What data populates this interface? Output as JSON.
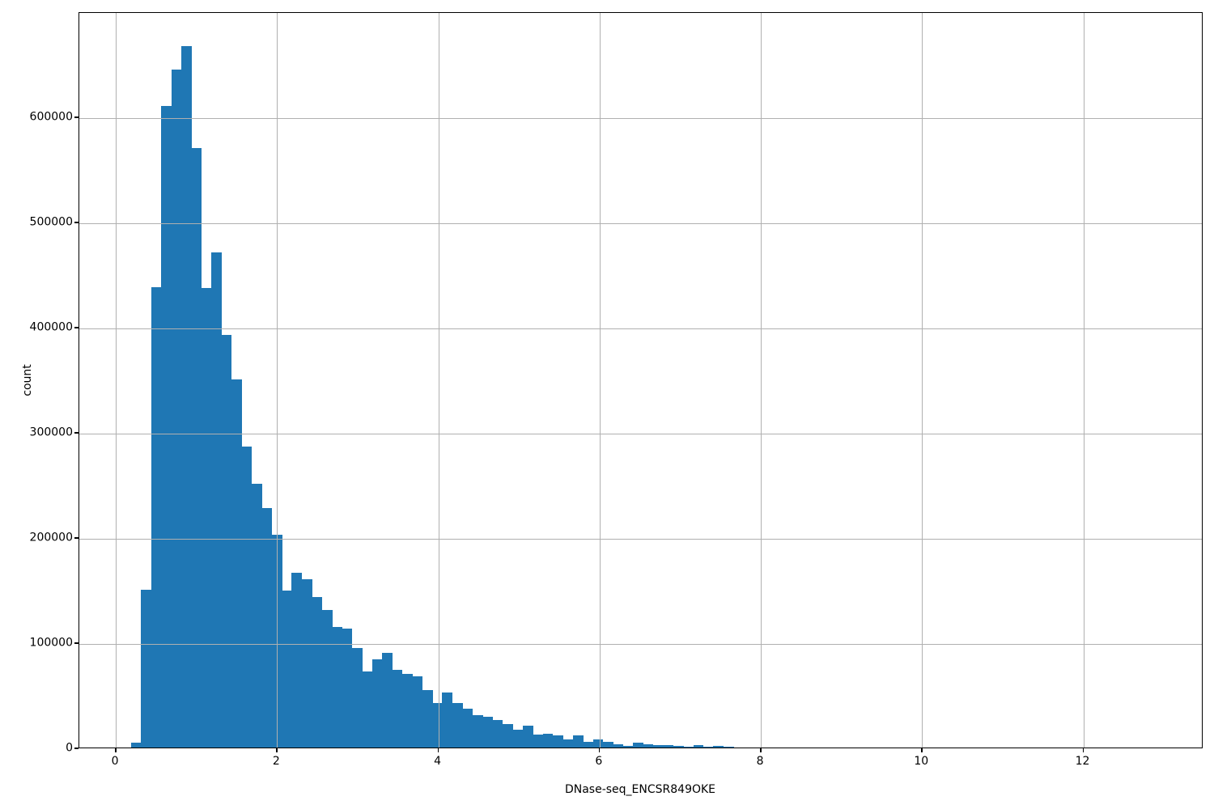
{
  "chart_data": {
    "type": "bar",
    "subtype": "histogram",
    "title": "",
    "xlabel": "DNase-seq_ENCSR849OKE",
    "ylabel": "count",
    "bar_color": "#1f77b4",
    "grid_color": "#b0b0b0",
    "grid": true,
    "legend": false,
    "xlim": [
      -0.452,
      13.49
    ],
    "ylim": [
      0,
      700000
    ],
    "xticks": [
      0,
      2,
      4,
      6,
      8,
      10,
      12
    ],
    "yticks": [
      0,
      100000,
      200000,
      300000,
      400000,
      500000,
      600000
    ],
    "bin_start": 0.19,
    "bin_width": 0.1245,
    "values": [
      4500,
      150000,
      438000,
      610000,
      645000,
      667000,
      570000,
      437000,
      471000,
      392000,
      350000,
      286000,
      251000,
      228000,
      202000,
      149000,
      166000,
      160000,
      143000,
      131000,
      115000,
      113000,
      95000,
      72000,
      84000,
      90000,
      74000,
      70000,
      68000,
      55000,
      42000,
      52000,
      42000,
      37000,
      31000,
      29000,
      26000,
      22000,
      17000,
      20500,
      12000,
      13000,
      11500,
      8000,
      11500,
      5600,
      7700,
      5400,
      3300,
      1500,
      4400,
      3300,
      2600,
      2600,
      1300,
      800,
      2100,
      400,
      1600,
      500
    ]
  }
}
